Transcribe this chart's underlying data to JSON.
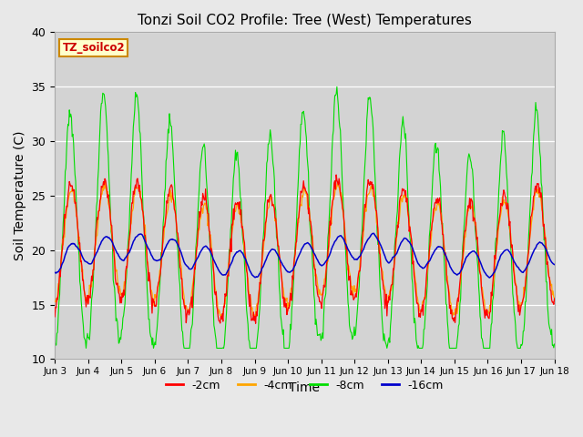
{
  "title": "Tonzi Soil CO2 Profile: Tree (West) Temperatures",
  "xlabel": "Time",
  "ylabel": "Soil Temperature (C)",
  "ylim": [
    10,
    40
  ],
  "yticks": [
    10,
    15,
    20,
    25,
    30,
    35,
    40
  ],
  "legend_label": "TZ_soilco2",
  "series_labels": [
    "-2cm",
    "-4cm",
    "-8cm",
    "-16cm"
  ],
  "series_colors": [
    "#ff0000",
    "#ffa500",
    "#00dd00",
    "#0000cc"
  ],
  "fig_facecolor": "#e8e8e8",
  "ax_facecolor": "#d3d3d3",
  "xtick_labels": [
    "Jun 3",
    "Jun 4",
    "Jun 5",
    "Jun 6",
    "Jun 7",
    "Jun 8",
    "Jun 9",
    "Jun 10",
    "Jun 11",
    "Jun 12",
    "Jun 13",
    "Jun 14",
    "Jun 15",
    "Jun 16",
    "Jun 17",
    "Jun 18"
  ],
  "n_days": 15,
  "points_per_day": 48
}
